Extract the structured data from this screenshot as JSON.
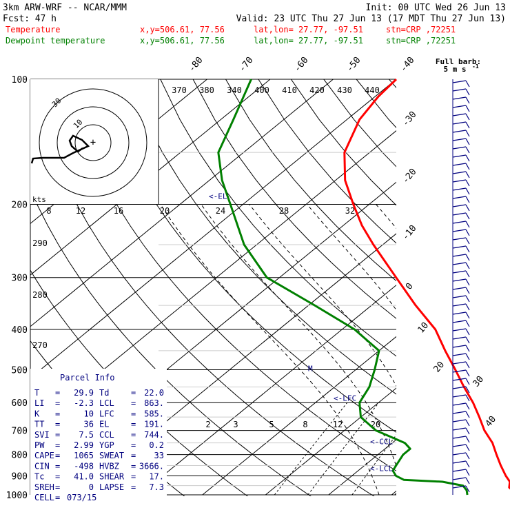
{
  "header": {
    "model": "3km ARW-WRF -- NCAR/MMM",
    "init": "Init: 00 UTC Wed 26 Jun 13",
    "fcst_label": "Fcst:",
    "fcst_value": "47 h",
    "valid": "Valid: 23 UTC Thu 27 Jun 13 (17 MDT Thu 27 Jun 13)",
    "temp_label": "Temperature",
    "dew_label": "Dewpoint temperature",
    "xy": "x,y=506.61, 77.56",
    "latlon": "lat,lon= 27.77, -97.51",
    "station": "stn=CRP ,72251",
    "colors": {
      "temperature": "#ff0000",
      "dewpoint": "#008000",
      "text": "#000000",
      "wind": "#00007f"
    }
  },
  "chart_data": {
    "type": "line",
    "title": "",
    "xlabel": "",
    "ylabel": "",
    "y_scale": "log-pressure",
    "ylim": [
      1000,
      100
    ],
    "pressure_ticks": [
      100,
      200,
      300,
      400,
      500,
      600,
      700,
      800,
      900,
      1000
    ],
    "isotherm_labels": [
      "-80",
      "-70",
      "-60",
      "-50",
      "-40",
      "-30",
      "-20",
      "-10",
      "0",
      "10",
      "20",
      "30",
      "40"
    ],
    "theta_labels_top": [
      "370",
      "380",
      "340",
      "400",
      "410",
      "420",
      "430",
      "440"
    ],
    "theta_labels_left": [
      "290",
      "280",
      "270"
    ],
    "mixing_ratio_labels": [
      "2",
      "3",
      "5",
      "8",
      "12",
      "20"
    ],
    "series": [
      {
        "name": "Temperature",
        "color": "#ff0000",
        "points": [
          {
            "p": 1000,
            "t": 29.9
          },
          {
            "p": 980,
            "t": 28.6
          },
          {
            "p": 960,
            "t": 27.2
          },
          {
            "p": 930,
            "t": 26.2
          },
          {
            "p": 900,
            "t": 24.4
          },
          {
            "p": 850,
            "t": 21.6
          },
          {
            "p": 800,
            "t": 18.8
          },
          {
            "p": 750,
            "t": 15.9
          },
          {
            "p": 700,
            "t": 12.2
          },
          {
            "p": 650,
            "t": 8.8
          },
          {
            "p": 600,
            "t": 5.0
          },
          {
            "p": 550,
            "t": 0.5
          },
          {
            "p": 500,
            "t": -4.2
          },
          {
            "p": 450,
            "t": -9.5
          },
          {
            "p": 400,
            "t": -15.2
          },
          {
            "p": 350,
            "t": -23.0
          },
          {
            "p": 300,
            "t": -31.5
          },
          {
            "p": 250,
            "t": -41.5
          },
          {
            "p": 225,
            "t": -47.0
          },
          {
            "p": 200,
            "t": -52.5
          },
          {
            "p": 175,
            "t": -58.5
          },
          {
            "p": 150,
            "t": -64.0
          },
          {
            "p": 125,
            "t": -68.0
          },
          {
            "p": 110,
            "t": -69.5
          },
          {
            "p": 100,
            "t": -70.0
          }
        ]
      },
      {
        "name": "Dewpoint temperature",
        "color": "#008000",
        "points": [
          {
            "p": 1000,
            "t": 22.0
          },
          {
            "p": 975,
            "t": 21.0
          },
          {
            "p": 950,
            "t": 19.5
          },
          {
            "p": 930,
            "t": 15.5
          },
          {
            "p": 920,
            "t": 9.0
          },
          {
            "p": 900,
            "t": 7.0
          },
          {
            "p": 875,
            "t": 5.5
          },
          {
            "p": 850,
            "t": 5.0
          },
          {
            "p": 800,
            "t": 4.0
          },
          {
            "p": 775,
            "t": 4.0
          },
          {
            "p": 750,
            "t": 2.0
          },
          {
            "p": 700,
            "t": -5.0
          },
          {
            "p": 650,
            "t": -10.0
          },
          {
            "p": 600,
            "t": -13.0
          },
          {
            "p": 550,
            "t": -14.5
          },
          {
            "p": 500,
            "t": -17.0
          },
          {
            "p": 450,
            "t": -20.0
          },
          {
            "p": 400,
            "t": -28.0
          },
          {
            "p": 350,
            "t": -39.0
          },
          {
            "p": 300,
            "t": -52.0
          },
          {
            "p": 250,
            "t": -62.0
          },
          {
            "p": 200,
            "t": -72.0
          },
          {
            "p": 175,
            "t": -78.0
          },
          {
            "p": 150,
            "t": -84.0
          },
          {
            "p": 125,
            "t": -88.0
          },
          {
            "p": 100,
            "t": -93.0
          }
        ]
      }
    ],
    "level_markers": [
      {
        "label": "<-EL",
        "p": 191
      },
      {
        "label": "<-LFC",
        "p": 585
      },
      {
        "label": "<-CCL",
        "p": 744
      },
      {
        "label": "<-LCL",
        "p": 863
      }
    ],
    "freezing_marker": {
      "label": "M",
      "p": 500
    },
    "hodograph": {
      "ring_labels": [
        "30",
        "10"
      ],
      "speed_labels": [
        "8",
        "12",
        "16",
        "20",
        "24",
        "28",
        "32"
      ],
      "units": "kts"
    },
    "wind_scale": {
      "title": "Full barb:",
      "value": "5 m s",
      "exponent": "-1"
    }
  },
  "parcel_info": {
    "title": "Parcel Info",
    "rows": [
      {
        "k1": "T",
        "v1": "29.9",
        "k2": "Td",
        "v2": "22.0"
      },
      {
        "k1": "LI",
        "v1": "-2.3",
        "k2": "LCL",
        "v2": "863."
      },
      {
        "k1": "K",
        "v1": "10",
        "k2": "LFC",
        "v2": "585."
      },
      {
        "k1": "TT",
        "v1": "36",
        "k2": "EL",
        "v2": "191."
      },
      {
        "k1": "SVI",
        "v1": "7.5",
        "k2": "CCL",
        "v2": "744."
      },
      {
        "k1": "PW",
        "v1": "2.99",
        "k2": "YGP",
        "v2": "0.2"
      },
      {
        "k1": "CAPE",
        "v1": "1065",
        "k2": "SWEAT",
        "v2": "33"
      },
      {
        "k1": "CIN",
        "v1": "-498",
        "k2": "HVBZ",
        "v2": "3666."
      },
      {
        "k1": "Tc",
        "v1": "41.0",
        "k2": "SHEAR",
        "v2": "17."
      },
      {
        "k1": "SREH",
        "v1": "0",
        "k2": "LAPSE",
        "v2": "7.3"
      },
      {
        "k1": "CELL",
        "v1": "073/15",
        "k2": "",
        "v2": ""
      }
    ]
  }
}
